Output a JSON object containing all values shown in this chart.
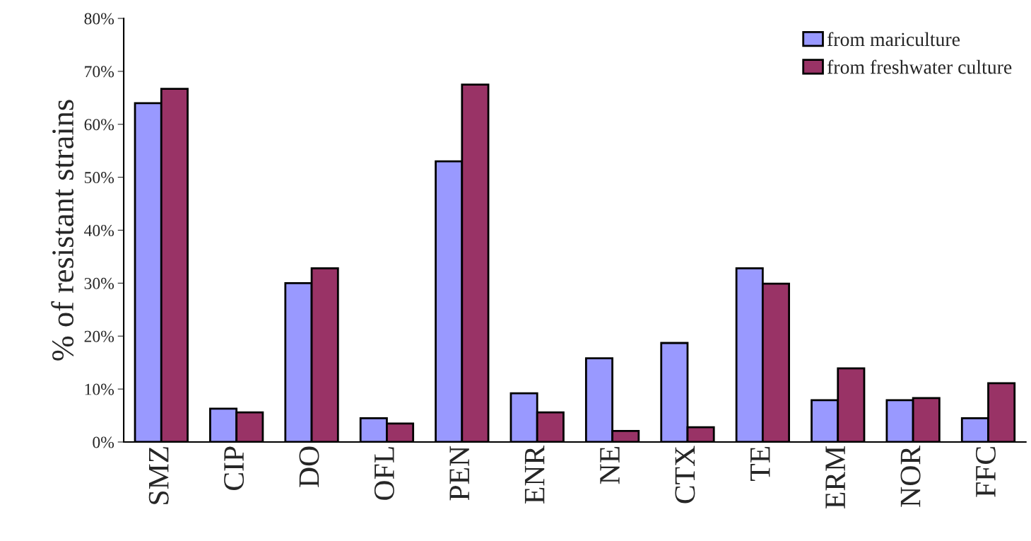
{
  "chart_data": {
    "type": "bar",
    "ylabel": "% of resistant strains",
    "categories": [
      "SMZ",
      "CIP",
      "DO",
      "OFL",
      "PEN",
      "ENR",
      "NE",
      "CTX",
      "TE",
      "ERM",
      "NOR",
      "FFC"
    ],
    "series": [
      {
        "name": "from mariculture",
        "color": "#9999ff",
        "values": [
          64,
          6.3,
          30,
          4.5,
          53,
          9.2,
          15.8,
          18.7,
          32.8,
          7.9,
          7.9,
          4.5
        ]
      },
      {
        "name": "from freshwater culture",
        "color": "#993366",
        "values": [
          66.7,
          5.6,
          32.8,
          3.5,
          67.5,
          5.6,
          2.1,
          2.8,
          29.9,
          13.9,
          8.3,
          11.1
        ]
      }
    ],
    "ylim": [
      0,
      80
    ],
    "yticks": [
      {
        "value": 0,
        "label": "0%"
      },
      {
        "value": 10,
        "label": "10%"
      },
      {
        "value": 20,
        "label": "20%"
      },
      {
        "value": 30,
        "label": "30%"
      },
      {
        "value": 40,
        "label": "40%"
      },
      {
        "value": 50,
        "label": "50%"
      },
      {
        "value": 60,
        "label": "60%"
      },
      {
        "value": 70,
        "label": "70%"
      },
      {
        "value": 80,
        "label": "80%"
      }
    ],
    "grid": false,
    "legend": "top right"
  }
}
